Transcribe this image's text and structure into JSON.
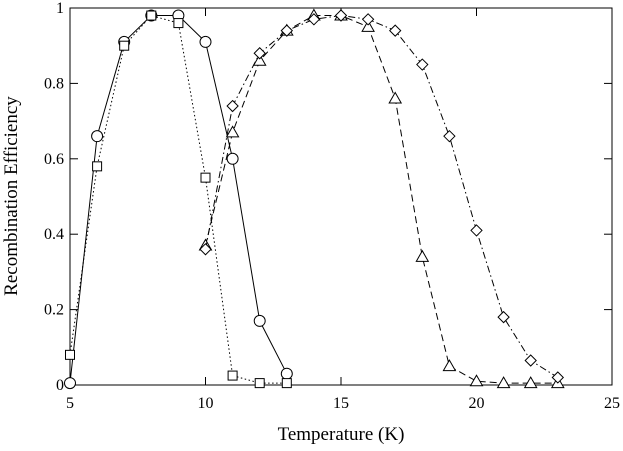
{
  "chart_data": {
    "type": "line",
    "xlabel": "Temperature (K)",
    "ylabel": "Recombination Efficiency",
    "xlim": [
      5,
      25
    ],
    "xticks": [
      5,
      10,
      15,
      20,
      25
    ],
    "ylim": [
      0,
      1
    ],
    "yticks": [
      0,
      0.2,
      0.4,
      0.6,
      0.8,
      1
    ],
    "series": [
      {
        "color": "#000000",
        "marker": "circle",
        "linestyle": "solid",
        "x": [
          5,
          6,
          7,
          8,
          9,
          10,
          11,
          12,
          13
        ],
        "values": [
          0.005,
          0.66,
          0.91,
          0.98,
          0.98,
          0.91,
          0.6,
          0.17,
          0.03
        ]
      },
      {
        "color": "#000000",
        "marker": "square",
        "linestyle": "dotted",
        "x": [
          5,
          6,
          7,
          8,
          9,
          10,
          11,
          12,
          13
        ],
        "values": [
          0.08,
          0.58,
          0.9,
          0.98,
          0.96,
          0.55,
          0.025,
          0.005,
          0.005
        ]
      },
      {
        "color": "#000000",
        "marker": "triangle",
        "linestyle": "dashed",
        "x": [
          10,
          11,
          12,
          13,
          14,
          15,
          16,
          17,
          18,
          19,
          20,
          21,
          22,
          23
        ],
        "values": [
          0.37,
          0.67,
          0.86,
          0.94,
          0.98,
          0.98,
          0.95,
          0.76,
          0.34,
          0.05,
          0.01,
          0.005,
          0.005,
          0.005
        ]
      },
      {
        "color": "#000000",
        "marker": "diamond",
        "linestyle": "dashdot",
        "x": [
          10,
          11,
          12,
          13,
          14,
          15,
          16,
          17,
          18,
          19,
          20,
          21,
          22,
          23
        ],
        "values": [
          0.36,
          0.74,
          0.88,
          0.94,
          0.97,
          0.98,
          0.97,
          0.94,
          0.85,
          0.66,
          0.41,
          0.18,
          0.065,
          0.02
        ]
      }
    ]
  }
}
